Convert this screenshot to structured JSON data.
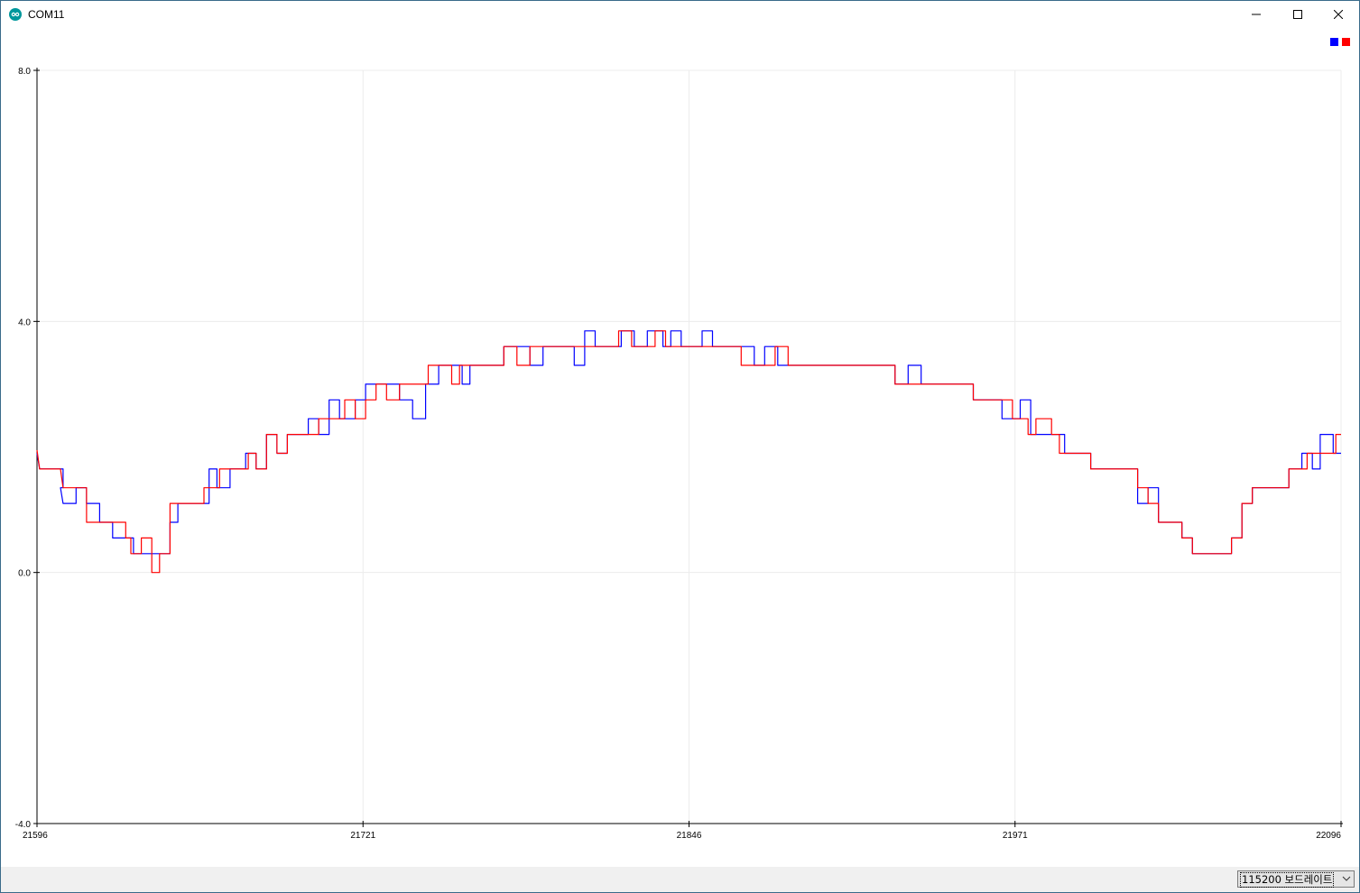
{
  "window": {
    "title": "COM11",
    "icon": "arduino-infinity-icon",
    "controls": [
      "minimize-icon",
      "maximize-icon",
      "close-icon"
    ]
  },
  "legend": {
    "colors": [
      "#0000ff",
      "#ff0000"
    ]
  },
  "chart_data": {
    "type": "line",
    "title": "",
    "xlabel": "",
    "ylabel": "",
    "xlim": [
      21596,
      22096
    ],
    "ylim": [
      -4.0,
      8.0
    ],
    "x_ticks": [
      "21596",
      "21721",
      "21846",
      "21971",
      "22096"
    ],
    "y_ticks": [
      "8.0",
      "4.0",
      "0.0",
      "-4.0"
    ],
    "grid": true,
    "legend_placement": "top-right",
    "series": [
      {
        "color": "#0000ff",
        "points": [
          [
            21596,
            1.9
          ],
          [
            21597,
            1.65
          ],
          [
            21605,
            1.65
          ],
          [
            21605,
            1.65
          ],
          [
            21606,
            1.65
          ],
          [
            21606,
            1.35
          ],
          [
            21605,
            1.35
          ],
          [
            21606,
            1.1
          ],
          [
            21611,
            1.1
          ],
          [
            21611,
            1.35
          ],
          [
            21615,
            1.35
          ],
          [
            21615,
            1.1
          ],
          [
            21620,
            1.1
          ],
          [
            21620,
            0.8
          ],
          [
            21625,
            0.8
          ],
          [
            21625,
            0.55
          ],
          [
            21633,
            0.55
          ],
          [
            21633,
            0.3
          ],
          [
            21647,
            0.3
          ],
          [
            21647,
            0.8
          ],
          [
            21650,
            0.8
          ],
          [
            21650,
            1.1
          ],
          [
            21662,
            1.1
          ],
          [
            21662,
            1.65
          ],
          [
            21665,
            1.65
          ],
          [
            21665,
            1.35
          ],
          [
            21670,
            1.35
          ],
          [
            21670,
            1.65
          ],
          [
            21676,
            1.65
          ],
          [
            21676,
            1.9
          ],
          [
            21680,
            1.9
          ],
          [
            21680,
            1.65
          ],
          [
            21684,
            1.65
          ],
          [
            21684,
            2.2
          ],
          [
            21688,
            2.2
          ],
          [
            21688,
            1.9
          ],
          [
            21692,
            1.9
          ],
          [
            21692,
            2.2
          ],
          [
            21700,
            2.2
          ],
          [
            21700,
            2.45
          ],
          [
            21704,
            2.45
          ],
          [
            21704,
            2.2
          ],
          [
            21708,
            2.2
          ],
          [
            21708,
            2.75
          ],
          [
            21712,
            2.75
          ],
          [
            21712,
            2.45
          ],
          [
            21718,
            2.45
          ],
          [
            21718,
            2.75
          ],
          [
            21722,
            2.75
          ],
          [
            21722,
            3.0
          ],
          [
            21735,
            3.0
          ],
          [
            21735,
            2.75
          ],
          [
            21740,
            2.75
          ],
          [
            21740,
            2.45
          ],
          [
            21745,
            2.45
          ],
          [
            21745,
            3.0
          ],
          [
            21750,
            3.0
          ],
          [
            21750,
            3.3
          ],
          [
            21759,
            3.3
          ],
          [
            21759,
            3.0
          ],
          [
            21762,
            3.0
          ],
          [
            21762,
            3.3
          ],
          [
            21775,
            3.3
          ],
          [
            21775,
            3.6
          ],
          [
            21785,
            3.6
          ],
          [
            21785,
            3.3
          ],
          [
            21790,
            3.3
          ],
          [
            21790,
            3.6
          ],
          [
            21802,
            3.6
          ],
          [
            21802,
            3.3
          ],
          [
            21806,
            3.3
          ],
          [
            21806,
            3.85
          ],
          [
            21810,
            3.85
          ],
          [
            21810,
            3.6
          ],
          [
            21820,
            3.6
          ],
          [
            21820,
            3.85
          ],
          [
            21825,
            3.85
          ],
          [
            21825,
            3.6
          ],
          [
            21830,
            3.6
          ],
          [
            21830,
            3.85
          ],
          [
            21836,
            3.85
          ],
          [
            21836,
            3.6
          ],
          [
            21839,
            3.6
          ],
          [
            21839,
            3.85
          ],
          [
            21843,
            3.85
          ],
          [
            21843,
            3.6
          ],
          [
            21851,
            3.6
          ],
          [
            21851,
            3.85
          ],
          [
            21855,
            3.85
          ],
          [
            21855,
            3.6
          ],
          [
            21871,
            3.6
          ],
          [
            21871,
            3.3
          ],
          [
            21875,
            3.3
          ],
          [
            21875,
            3.6
          ],
          [
            21880,
            3.6
          ],
          [
            21880,
            3.3
          ],
          [
            21925,
            3.3
          ],
          [
            21925,
            3.0
          ],
          [
            21930,
            3.0
          ],
          [
            21930,
            3.3
          ],
          [
            21935,
            3.3
          ],
          [
            21935,
            3.0
          ],
          [
            21955,
            3.0
          ],
          [
            21955,
            2.75
          ],
          [
            21966,
            2.75
          ],
          [
            21966,
            2.45
          ],
          [
            21973,
            2.45
          ],
          [
            21973,
            2.75
          ],
          [
            21977,
            2.75
          ],
          [
            21977,
            2.2
          ],
          [
            21990,
            2.2
          ],
          [
            21990,
            1.9
          ],
          [
            22000,
            1.9
          ],
          [
            22000,
            1.65
          ],
          [
            22018,
            1.65
          ],
          [
            22018,
            1.1
          ],
          [
            22022,
            1.1
          ],
          [
            22022,
            1.35
          ],
          [
            22026,
            1.35
          ],
          [
            22026,
            0.8
          ],
          [
            22035,
            0.8
          ],
          [
            22035,
            0.55
          ],
          [
            22039,
            0.55
          ],
          [
            22039,
            0.3
          ],
          [
            22054,
            0.3
          ],
          [
            22054,
            0.55
          ],
          [
            22058,
            0.55
          ],
          [
            22058,
            1.1
          ],
          [
            22062,
            1.1
          ],
          [
            22062,
            1.35
          ],
          [
            22076,
            1.35
          ],
          [
            22076,
            1.65
          ],
          [
            22081,
            1.65
          ],
          [
            22081,
            1.9
          ],
          [
            22085,
            1.9
          ],
          [
            22085,
            1.65
          ],
          [
            22088,
            1.65
          ],
          [
            22088,
            2.2
          ],
          [
            22093,
            2.2
          ],
          [
            22093,
            1.9
          ],
          [
            22096,
            1.9
          ]
        ]
      },
      {
        "color": "#ff0000",
        "points": [
          [
            21596,
            1.95
          ],
          [
            21597,
            1.65
          ],
          [
            21605,
            1.65
          ],
          [
            21606,
            1.35
          ],
          [
            21615,
            1.35
          ],
          [
            21615,
            0.8
          ],
          [
            21630,
            0.8
          ],
          [
            21630,
            0.55
          ],
          [
            21632,
            0.55
          ],
          [
            21632,
            0.3
          ],
          [
            21636,
            0.3
          ],
          [
            21636,
            0.55
          ],
          [
            21640,
            0.55
          ],
          [
            21640,
            0.0
          ],
          [
            21643,
            0.0
          ],
          [
            21643,
            0.3
          ],
          [
            21647,
            0.3
          ],
          [
            21647,
            1.1
          ],
          [
            21660,
            1.1
          ],
          [
            21660,
            1.35
          ],
          [
            21666,
            1.35
          ],
          [
            21666,
            1.65
          ],
          [
            21677,
            1.65
          ],
          [
            21677,
            1.9
          ],
          [
            21680,
            1.9
          ],
          [
            21680,
            1.65
          ],
          [
            21684,
            1.65
          ],
          [
            21684,
            2.2
          ],
          [
            21688,
            2.2
          ],
          [
            21688,
            1.9
          ],
          [
            21692,
            1.9
          ],
          [
            21692,
            2.2
          ],
          [
            21704,
            2.2
          ],
          [
            21704,
            2.45
          ],
          [
            21714,
            2.45
          ],
          [
            21714,
            2.75
          ],
          [
            21718,
            2.75
          ],
          [
            21718,
            2.45
          ],
          [
            21722,
            2.45
          ],
          [
            21722,
            2.75
          ],
          [
            21726,
            2.75
          ],
          [
            21726,
            3.0
          ],
          [
            21730,
            3.0
          ],
          [
            21730,
            2.75
          ],
          [
            21735,
            2.75
          ],
          [
            21735,
            3.0
          ],
          [
            21746,
            3.0
          ],
          [
            21746,
            3.3
          ],
          [
            21755,
            3.3
          ],
          [
            21755,
            3.0
          ],
          [
            21758,
            3.0
          ],
          [
            21758,
            3.3
          ],
          [
            21775,
            3.3
          ],
          [
            21775,
            3.6
          ],
          [
            21780,
            3.6
          ],
          [
            21780,
            3.3
          ],
          [
            21785,
            3.3
          ],
          [
            21785,
            3.6
          ],
          [
            21819,
            3.6
          ],
          [
            21819,
            3.85
          ],
          [
            21824,
            3.85
          ],
          [
            21824,
            3.6
          ],
          [
            21833,
            3.6
          ],
          [
            21833,
            3.85
          ],
          [
            21837,
            3.85
          ],
          [
            21837,
            3.6
          ],
          [
            21866,
            3.6
          ],
          [
            21866,
            3.3
          ],
          [
            21879,
            3.3
          ],
          [
            21879,
            3.6
          ],
          [
            21884,
            3.6
          ],
          [
            21884,
            3.3
          ],
          [
            21925,
            3.3
          ],
          [
            21925,
            3.0
          ],
          [
            21955,
            3.0
          ],
          [
            21955,
            2.75
          ],
          [
            21970,
            2.75
          ],
          [
            21970,
            2.45
          ],
          [
            21976,
            2.45
          ],
          [
            21976,
            2.2
          ],
          [
            21979,
            2.2
          ],
          [
            21979,
            2.45
          ],
          [
            21985,
            2.45
          ],
          [
            21985,
            2.2
          ],
          [
            21988,
            2.2
          ],
          [
            21988,
            1.9
          ],
          [
            22000,
            1.9
          ],
          [
            22000,
            1.65
          ],
          [
            22018,
            1.65
          ],
          [
            22018,
            1.35
          ],
          [
            22022,
            1.35
          ],
          [
            22022,
            1.1
          ],
          [
            22026,
            1.1
          ],
          [
            22026,
            0.8
          ],
          [
            22035,
            0.8
          ],
          [
            22035,
            0.55
          ],
          [
            22039,
            0.55
          ],
          [
            22039,
            0.3
          ],
          [
            22054,
            0.3
          ],
          [
            22054,
            0.55
          ],
          [
            22058,
            0.55
          ],
          [
            22058,
            1.1
          ],
          [
            22062,
            1.1
          ],
          [
            22062,
            1.35
          ],
          [
            22076,
            1.35
          ],
          [
            22076,
            1.65
          ],
          [
            22083,
            1.65
          ],
          [
            22083,
            1.9
          ],
          [
            22094,
            1.9
          ],
          [
            22094,
            2.2
          ],
          [
            22096,
            2.2
          ]
        ]
      }
    ]
  },
  "statusbar": {
    "baud_rate_select": "115200 보드레이트"
  }
}
